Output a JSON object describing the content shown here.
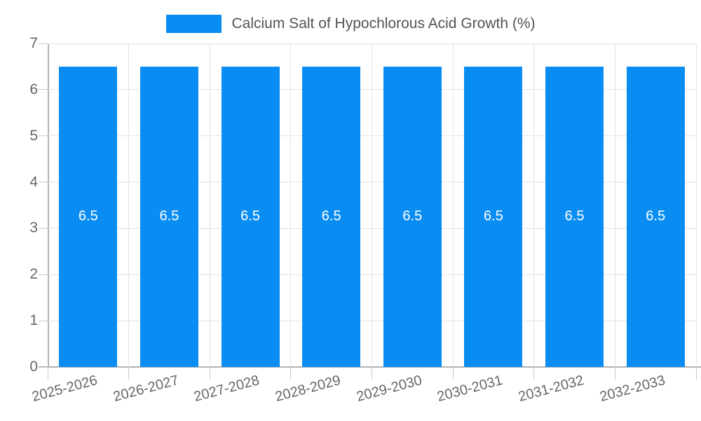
{
  "chart_data": {
    "type": "bar",
    "title": "Calcium Salt of Hypochlorous Acid Growth (%)",
    "categories": [
      "2025-2026",
      "2026-2027",
      "2027-2028",
      "2028-2029",
      "2029-2030",
      "2030-2031",
      "2031-2032",
      "2032-2033"
    ],
    "values": [
      6.5,
      6.5,
      6.5,
      6.5,
      6.5,
      6.5,
      6.5,
      6.5
    ],
    "value_labels": [
      "6.5",
      "6.5",
      "6.5",
      "6.5",
      "6.5",
      "6.5",
      "6.5",
      "6.5"
    ],
    "xlabel": "",
    "ylabel": "",
    "ylim": [
      0,
      7
    ],
    "yticks": [
      0,
      1,
      2,
      3,
      4,
      5,
      6,
      7
    ],
    "grid": true,
    "legend_position": "top",
    "bar_color": "#0a8df2",
    "bar_label_color": "#ffffff",
    "axis_color": "#b3b3b3",
    "grid_color": "#e3e3e3",
    "tick_label_color": "#666666",
    "legend_text_color": "#545454"
  }
}
